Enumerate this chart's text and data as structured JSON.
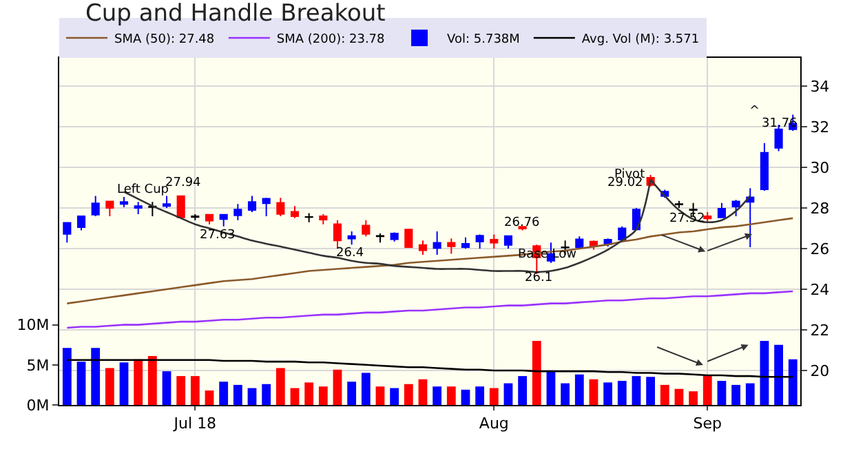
{
  "chart_data": {
    "type": "candlestick",
    "title": "Cup and Handle Breakout",
    "categories": [
      null,
      null,
      null,
      null,
      null,
      null,
      null,
      null,
      null,
      "Jul 18",
      null,
      null,
      null,
      null,
      null,
      null,
      null,
      null,
      null,
      null,
      null,
      null,
      null,
      null,
      null,
      null,
      null,
      null,
      null,
      null,
      "Aug",
      null,
      null,
      null,
      null,
      null,
      null,
      null,
      null,
      null,
      null,
      null,
      null,
      null,
      null,
      "Sep",
      null,
      null,
      null,
      null,
      null,
      null
    ],
    "ohlc": [
      [
        26.72,
        27.3,
        26.3,
        27.27
      ],
      [
        27.05,
        27.6,
        26.9,
        27.6
      ],
      [
        27.67,
        28.6,
        27.6,
        28.23
      ],
      [
        28.33,
        28.35,
        27.6,
        28.0
      ],
      [
        28.2,
        28.55,
        28.05,
        28.3
      ],
      [
        28.0,
        28.3,
        27.7,
        28.1
      ],
      [
        28.05,
        28.3,
        27.6,
        28.08
      ],
      [
        28.1,
        28.6,
        28.0,
        28.2
      ],
      [
        28.59,
        28.6,
        27.5,
        27.54
      ],
      [
        27.55,
        27.7,
        27.4,
        27.6
      ],
      [
        27.67,
        27.7,
        27.2,
        27.38
      ],
      [
        27.45,
        27.7,
        27.1,
        27.67
      ],
      [
        27.64,
        28.2,
        27.4,
        27.93
      ],
      [
        27.9,
        28.6,
        27.8,
        28.3
      ],
      [
        28.23,
        28.5,
        27.6,
        28.46
      ],
      [
        28.26,
        28.5,
        27.6,
        27.71
      ],
      [
        27.82,
        28.1,
        27.5,
        27.6
      ],
      [
        27.55,
        27.75,
        27.3,
        27.56
      ],
      [
        27.6,
        27.7,
        27.2,
        27.43
      ],
      [
        27.21,
        27.4,
        26.0,
        26.4
      ],
      [
        26.49,
        26.85,
        26.2,
        26.62
      ],
      [
        27.14,
        27.4,
        26.6,
        26.72
      ],
      [
        26.6,
        26.75,
        26.3,
        26.63
      ],
      [
        26.46,
        26.8,
        26.35,
        26.75
      ],
      [
        26.94,
        26.95,
        26.05,
        26.07
      ],
      [
        26.18,
        26.4,
        25.7,
        25.92
      ],
      [
        26.03,
        26.85,
        25.7,
        26.29
      ],
      [
        26.29,
        26.5,
        25.75,
        26.11
      ],
      [
        26.07,
        26.55,
        26.0,
        26.24
      ],
      [
        26.35,
        26.7,
        26.0,
        26.64
      ],
      [
        26.44,
        26.7,
        26.0,
        26.29
      ],
      [
        26.18,
        26.65,
        26.0,
        26.62
      ],
      [
        27.08,
        27.1,
        26.9,
        26.99
      ],
      [
        26.13,
        26.2,
        24.75,
        25.57
      ],
      [
        25.4,
        26.3,
        25.3,
        25.74
      ],
      [
        26.05,
        26.4,
        25.7,
        26.07
      ],
      [
        26.07,
        26.6,
        26.0,
        26.46
      ],
      [
        26.35,
        26.4,
        25.95,
        26.13
      ],
      [
        26.22,
        26.5,
        26.1,
        26.44
      ],
      [
        26.44,
        27.1,
        26.35,
        27.0
      ],
      [
        26.94,
        28.0,
        26.9,
        27.93
      ],
      [
        29.5,
        29.63,
        29.06,
        29.13
      ],
      [
        28.59,
        28.9,
        28.5,
        28.81
      ],
      [
        28.17,
        28.35,
        28.0,
        28.2
      ],
      [
        27.9,
        28.25,
        27.6,
        27.93
      ],
      [
        27.6,
        27.8,
        27.3,
        27.49
      ],
      [
        27.54,
        28.25,
        27.5,
        27.97
      ],
      [
        28.07,
        28.4,
        27.6,
        28.33
      ],
      [
        28.3,
        28.98,
        26.07,
        28.53
      ],
      [
        28.92,
        31.2,
        28.85,
        30.73
      ],
      [
        30.96,
        32.1,
        30.8,
        31.88
      ],
      [
        31.88,
        32.6,
        31.8,
        32.16
      ]
    ],
    "colors": [
      "#0000ff",
      "#0000ff",
      "#0000ff",
      "#ff0000",
      "#0000ff",
      "#0000ff",
      "#000000",
      "#0000ff",
      "#ff0000",
      "#000000",
      "#ff0000",
      "#0000ff",
      "#0000ff",
      "#0000ff",
      "#0000ff",
      "#ff0000",
      "#ff0000",
      "#000000",
      "#ff0000",
      "#ff0000",
      "#0000ff",
      "#ff0000",
      "#000000",
      "#0000ff",
      "#ff0000",
      "#ff0000",
      "#0000ff",
      "#ff0000",
      "#0000ff",
      "#0000ff",
      "#ff0000",
      "#0000ff",
      "#ff0000",
      "#ff0000",
      "#0000ff",
      "#000000",
      "#0000ff",
      "#ff0000",
      "#0000ff",
      "#0000ff",
      "#0000ff",
      "#ff0000",
      "#0000ff",
      "#000000",
      "#000000",
      "#ff0000",
      "#0000ff",
      "#0000ff",
      "#0000ff",
      "#0000ff",
      "#0000ff",
      "#0000ff"
    ],
    "series": [
      {
        "name": "SMA (50): 27.48",
        "type": "line",
        "color": "#8b5a2b",
        "values": [
          23.3,
          23.4,
          23.5,
          23.6,
          23.7,
          23.8,
          23.9,
          24.0,
          24.1,
          24.2,
          24.3,
          24.4,
          24.45,
          24.5,
          24.6,
          24.7,
          24.8,
          24.9,
          24.95,
          25.0,
          25.05,
          25.1,
          25.15,
          25.2,
          25.3,
          25.35,
          25.4,
          25.45,
          25.5,
          25.55,
          25.6,
          25.65,
          25.7,
          25.8,
          25.85,
          25.9,
          26.0,
          26.1,
          26.2,
          26.35,
          26.45,
          26.6,
          26.7,
          26.8,
          26.85,
          26.95,
          27.05,
          27.1,
          27.2,
          27.3,
          27.4,
          27.5
        ]
      },
      {
        "name": "SMA (200): 23.78",
        "type": "line",
        "color": "#9933ff",
        "values": [
          22.1,
          22.15,
          22.15,
          22.2,
          22.25,
          22.25,
          22.3,
          22.35,
          22.4,
          22.4,
          22.45,
          22.5,
          22.5,
          22.55,
          22.6,
          22.6,
          22.65,
          22.7,
          22.75,
          22.75,
          22.8,
          22.85,
          22.85,
          22.9,
          22.95,
          22.95,
          23.0,
          23.05,
          23.1,
          23.1,
          23.15,
          23.2,
          23.2,
          23.25,
          23.3,
          23.3,
          23.35,
          23.4,
          23.45,
          23.45,
          23.5,
          23.55,
          23.55,
          23.6,
          23.65,
          23.65,
          23.7,
          23.75,
          23.8,
          23.8,
          23.85,
          23.9
        ]
      },
      {
        "name": "Vol: 5.738M",
        "type": "bar",
        "axis": "y2",
        "colors": [
          "#0000ff",
          "#0000ff",
          "#0000ff",
          "#ff0000",
          "#0000ff",
          "#ff0000",
          "#ff0000",
          "#0000ff",
          "#ff0000",
          "#ff0000",
          "#ff0000",
          "#0000ff",
          "#0000ff",
          "#0000ff",
          "#0000ff",
          "#ff0000",
          "#ff0000",
          "#ff0000",
          "#ff0000",
          "#ff0000",
          "#0000ff",
          "#0000ff",
          "#ff0000",
          "#0000ff",
          "#ff0000",
          "#ff0000",
          "#0000ff",
          "#ff0000",
          "#0000ff",
          "#0000ff",
          "#ff0000",
          "#0000ff",
          "#0000ff",
          "#ff0000",
          "#0000ff",
          "#0000ff",
          "#0000ff",
          "#ff0000",
          "#0000ff",
          "#0000ff",
          "#0000ff",
          "#0000ff",
          "#ff0000",
          "#ff0000",
          "#ff0000",
          "#ff0000",
          "#0000ff",
          "#0000ff",
          "#0000ff",
          "#0000ff",
          "#0000ff",
          "#0000ff"
        ],
        "values": [
          7.1,
          5.4,
          7.1,
          4.6,
          5.3,
          5.7,
          6.1,
          4.2,
          3.6,
          3.6,
          1.8,
          2.9,
          2.5,
          2.1,
          2.6,
          4.6,
          2.1,
          2.8,
          2.3,
          4.4,
          2.9,
          4.0,
          2.3,
          2.1,
          2.6,
          3.2,
          2.3,
          2.3,
          1.9,
          2.3,
          2.1,
          2.7,
          3.6,
          8.0,
          4.3,
          2.7,
          3.8,
          3.2,
          2.8,
          3.0,
          3.6,
          3.5,
          2.5,
          2.0,
          1.7,
          3.7,
          3.0,
          2.5,
          2.7,
          8.0,
          7.5,
          5.7
        ]
      },
      {
        "name": "Avg. Vol (M): 3.571",
        "type": "line",
        "axis": "y2",
        "color": "#000000",
        "values": [
          5.6,
          5.6,
          5.6,
          5.6,
          5.6,
          5.6,
          5.6,
          5.6,
          5.6,
          5.6,
          5.6,
          5.5,
          5.5,
          5.5,
          5.4,
          5.4,
          5.4,
          5.3,
          5.3,
          5.2,
          5.1,
          5.0,
          4.9,
          4.8,
          4.7,
          4.7,
          4.6,
          4.5,
          4.4,
          4.4,
          4.3,
          4.3,
          4.3,
          4.2,
          4.2,
          4.2,
          4.2,
          4.2,
          4.1,
          4.1,
          4.0,
          4.0,
          3.9,
          3.9,
          3.8,
          3.7,
          3.7,
          3.6,
          3.6,
          3.5,
          3.5,
          3.5
        ]
      },
      {
        "type": "line",
        "color": "#333333",
        "values": [
          null,
          null,
          null,
          null,
          28.8,
          28.45,
          28.1,
          27.8,
          27.5,
          27.2,
          27.0,
          26.8,
          26.6,
          26.4,
          26.24,
          26.1,
          25.95,
          25.8,
          25.65,
          25.55,
          25.4,
          25.3,
          25.25,
          25.15,
          25.1,
          25.05,
          25.0,
          25.0,
          25.0,
          24.95,
          24.9,
          24.9,
          24.9,
          24.85,
          24.9,
          25.05,
          25.3,
          25.6,
          25.95,
          26.4,
          26.95,
          29.4,
          null,
          null,
          null,
          null,
          null,
          null,
          null,
          null,
          null,
          null
        ]
      },
      {
        "type": "line",
        "color": "#333333",
        "values": [
          null,
          null,
          null,
          null,
          null,
          null,
          null,
          null,
          null,
          null,
          null,
          null,
          null,
          null,
          null,
          null,
          null,
          null,
          null,
          null,
          null,
          null,
          null,
          null,
          null,
          null,
          null,
          null,
          null,
          null,
          null,
          null,
          null,
          null,
          null,
          null,
          null,
          null,
          null,
          null,
          null,
          29.4,
          28.6,
          27.9,
          27.45,
          27.3,
          27.4,
          27.85,
          28.6,
          null,
          null,
          null
        ]
      }
    ],
    "ylim": [
      18.3,
      35.4
    ],
    "yticks": [
      20,
      22,
      24,
      26,
      28,
      30,
      32,
      34
    ],
    "y2lim": [
      0,
      43.3
    ],
    "y2ticks": [
      {
        "value": 0,
        "label": "0M"
      },
      {
        "value": 5,
        "label": "5M"
      },
      {
        "value": 10,
        "label": "10M"
      }
    ],
    "annotations": [
      "Left Cup",
      "27.94",
      "27.63",
      "26.4",
      "26.76",
      "Base Low",
      "26.1",
      "Pivot",
      "29.02",
      "27.52",
      "^",
      "31.76"
    ],
    "grid": true,
    "legend": "top"
  }
}
